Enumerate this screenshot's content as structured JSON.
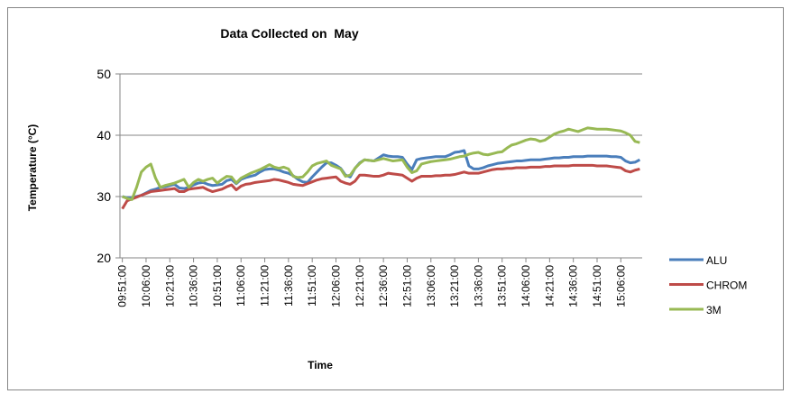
{
  "chart_data": {
    "type": "line",
    "title": "Data Collected on  May",
    "x_label": "Time",
    "y_label": "Temperature (°C)",
    "ylim": [
      20,
      50
    ],
    "yticks": [
      20,
      30,
      40,
      50
    ],
    "grid": true,
    "legend": "right",
    "categories": [
      "09:51:00",
      null,
      null,
      null,
      null,
      "10:06:00",
      null,
      null,
      null,
      null,
      "10:21:00",
      null,
      null,
      null,
      null,
      "10:36:00",
      null,
      null,
      null,
      null,
      "10:51:00",
      null,
      null,
      null,
      null,
      "11:06:00",
      null,
      null,
      null,
      null,
      "11:21:00",
      null,
      null,
      null,
      null,
      "11:36:00",
      null,
      null,
      null,
      null,
      "11:51:00",
      null,
      null,
      null,
      null,
      "12:06:00",
      null,
      null,
      null,
      null,
      "12:21:00",
      null,
      null,
      null,
      null,
      "12:36:00",
      null,
      null,
      null,
      null,
      "12:51:00",
      null,
      null,
      null,
      null,
      "13:06:00",
      null,
      null,
      null,
      null,
      "13:21:00",
      null,
      null,
      null,
      null,
      "13:36:00",
      null,
      null,
      null,
      null,
      "13:51:00",
      null,
      null,
      null,
      null,
      "14:06:00",
      null,
      null,
      null,
      null,
      "14:21:00",
      null,
      null,
      null,
      null,
      "14:36:00",
      null,
      null,
      null,
      null,
      "14:51:00",
      null,
      null,
      null,
      null,
      "15:06:00",
      null,
      null,
      null,
      null
    ],
    "series": [
      {
        "name": "ALU",
        "color": "#4a7ebb",
        "values": [
          30,
          29.8,
          29.8,
          30,
          30.2,
          30.6,
          31,
          31.2,
          31.5,
          31.6,
          31.8,
          32,
          31.4,
          31.3,
          31.5,
          31.9,
          32.2,
          32.3,
          32,
          31.8,
          31.9,
          32,
          32.6,
          32.8,
          32.1,
          32.8,
          33.1,
          33.3,
          33.5,
          34,
          34.4,
          34.5,
          34.5,
          34.3,
          34,
          33.8,
          33.4,
          32.8,
          32.4,
          32.3,
          33.2,
          34,
          34.8,
          35.5,
          35.5,
          35.1,
          34.6,
          33.5,
          33.2,
          34.6,
          35.5,
          36,
          35.9,
          35.8,
          36.3,
          36.8,
          36.6,
          36.5,
          36.5,
          36.4,
          35.3,
          34.4,
          36,
          36.2,
          36.3,
          36.4,
          36.5,
          36.5,
          36.5,
          36.8,
          37.2,
          37.3,
          37.5,
          35,
          34.5,
          34.5,
          34.7,
          35,
          35.2,
          35.4,
          35.5,
          35.6,
          35.7,
          35.8,
          35.8,
          35.9,
          36,
          36,
          36,
          36.1,
          36.2,
          36.3,
          36.3,
          36.4,
          36.4,
          36.5,
          36.5,
          36.5,
          36.6,
          36.6,
          36.6,
          36.6,
          36.6,
          36.5,
          36.5,
          36.4,
          35.8,
          35.5,
          35.6,
          36
        ]
      },
      {
        "name": "CHROM",
        "color": "#be4b48",
        "values": [
          28,
          29.3,
          29.6,
          29.9,
          30.2,
          30.5,
          30.8,
          30.9,
          31,
          31.1,
          31.2,
          31.3,
          30.8,
          30.8,
          31.2,
          31.3,
          31.4,
          31.5,
          31.1,
          30.8,
          31,
          31.2,
          31.6,
          31.9,
          31.1,
          31.7,
          32,
          32.1,
          32.3,
          32.4,
          32.5,
          32.6,
          32.8,
          32.7,
          32.5,
          32.3,
          32,
          31.9,
          31.8,
          32.1,
          32.4,
          32.7,
          32.9,
          33,
          33.1,
          33.2,
          32.5,
          32.2,
          32,
          32.5,
          33.5,
          33.5,
          33.4,
          33.3,
          33.3,
          33.5,
          33.8,
          33.7,
          33.6,
          33.5,
          33,
          32.5,
          33,
          33.3,
          33.3,
          33.3,
          33.4,
          33.4,
          33.5,
          33.5,
          33.6,
          33.8,
          34,
          33.8,
          33.8,
          33.8,
          34,
          34.2,
          34.4,
          34.5,
          34.5,
          34.6,
          34.6,
          34.7,
          34.7,
          34.7,
          34.8,
          34.8,
          34.8,
          34.9,
          34.9,
          35,
          35,
          35,
          35,
          35.1,
          35.1,
          35.1,
          35.1,
          35.1,
          35,
          35,
          35,
          34.9,
          34.8,
          34.7,
          34.2,
          34,
          34.3,
          34.5
        ]
      },
      {
        "name": "3M",
        "color": "#98b954",
        "values": [
          30,
          29.7,
          29.5,
          31.5,
          34,
          34.8,
          35.3,
          33,
          31.5,
          31.8,
          32,
          32.2,
          32.5,
          32.8,
          31.5,
          32.3,
          32.8,
          32.5,
          32.8,
          33,
          32.2,
          32.8,
          33.3,
          33.2,
          32.2,
          33,
          33.4,
          33.8,
          34.1,
          34.4,
          34.8,
          35.2,
          34.8,
          34.6,
          34.8,
          34.5,
          33.3,
          33.1,
          33.2,
          34,
          35,
          35.4,
          35.6,
          35.8,
          35.1,
          34.8,
          34.5,
          33.3,
          33.5,
          34.6,
          35.4,
          36,
          35.9,
          35.8,
          36,
          36.2,
          36,
          35.8,
          35.9,
          36,
          34.8,
          33.9,
          34.2,
          35.3,
          35.5,
          35.7,
          35.8,
          35.9,
          36,
          36.1,
          36.3,
          36.5,
          36.6,
          36.9,
          37.1,
          37.2,
          36.9,
          36.8,
          37,
          37.2,
          37.3,
          37.9,
          38.4,
          38.6,
          38.9,
          39.2,
          39.4,
          39.3,
          39,
          39.2,
          39.7,
          40.2,
          40.5,
          40.7,
          41,
          40.8,
          40.6,
          40.9,
          41.2,
          41.1,
          41,
          41,
          41,
          40.9,
          40.8,
          40.7,
          40.4,
          40,
          39,
          38.8
        ]
      }
    ]
  }
}
